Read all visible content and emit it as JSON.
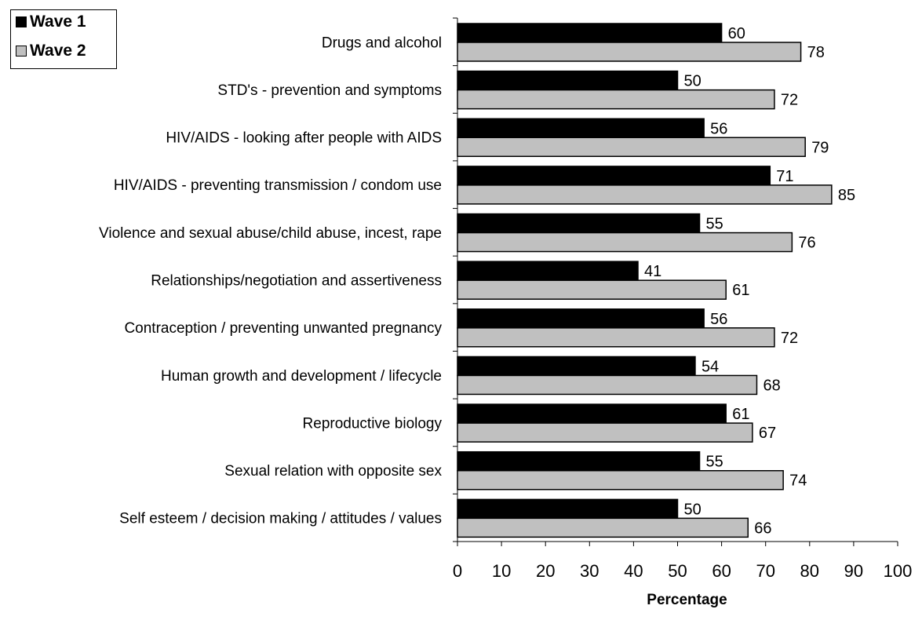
{
  "chart_data": {
    "type": "bar",
    "orientation": "horizontal",
    "categories": [
      "Drugs and alcohol",
      "STD's - prevention and symptoms",
      "HIV/AIDS - looking after people with AIDS",
      "HIV/AIDS - preventing transmission / condom use",
      "Violence and sexual abuse/child abuse, incest, rape",
      "Relationships/negotiation and assertiveness",
      "Contraception / preventing unwanted pregnancy",
      "Human growth and development / lifecycle",
      "Reproductive biology",
      "Sexual relation with opposite sex",
      "Self esteem / decision making / attitudes / values"
    ],
    "series": [
      {
        "name": "Wave 1",
        "color": "#000000",
        "values": [
          60,
          50,
          56,
          71,
          55,
          41,
          56,
          54,
          61,
          55,
          50
        ]
      },
      {
        "name": "Wave 2",
        "color": "#c0c0c0",
        "values": [
          78,
          72,
          79,
          85,
          76,
          61,
          72,
          68,
          67,
          74,
          66
        ]
      }
    ],
    "xlabel": "Percentage",
    "ylabel": "",
    "xlim": [
      0,
      100
    ],
    "xticks": [
      0,
      10,
      20,
      30,
      40,
      50,
      60,
      70,
      80,
      90,
      100
    ],
    "grid": false,
    "legend_position": "top-left"
  }
}
